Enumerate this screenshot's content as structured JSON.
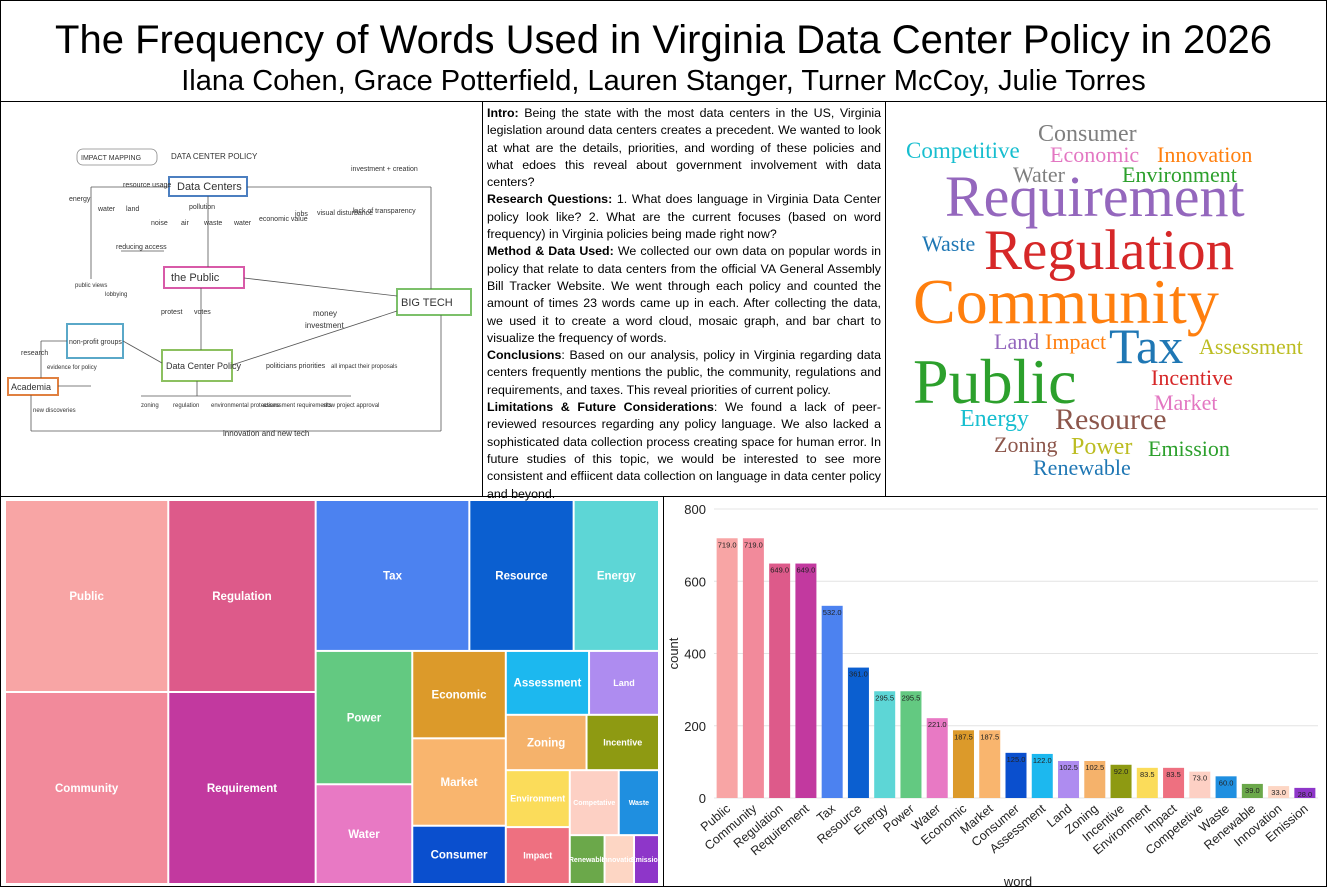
{
  "header": {
    "title": "The Frequency of Words Used in Virginia Data Center Policy in 2026",
    "authors": "Ilana Cohen, Grace Potterfield, Lauren Stanger, Turner McCoy, Julie Torres"
  },
  "diagram": {
    "labels": [
      "IMPACT MAPPING",
      "DATA CENTER POLICY",
      "Data Centers",
      "investment + creation",
      "resource usage",
      "energy",
      "water",
      "land",
      "pollution",
      "noise",
      "air",
      "waste",
      "water",
      "economic value",
      "jobs",
      "visual disturbance",
      "lack of transparency",
      "reducing access",
      "the Public",
      "BIG TECH",
      "money",
      "investment",
      "protest",
      "votes",
      "public views",
      "lobbying",
      "non-profit groups",
      "research",
      "evidence for policy",
      "Data Center Policy",
      "politicians priorities",
      "all impact their proposals",
      "Academia",
      "new discoveries",
      "zoning",
      "regulation",
      "environmental protections",
      "assessment requirements",
      "slow project approval",
      "innovation and new tech"
    ]
  },
  "text": {
    "sections": [
      {
        "label": "Intro:",
        "body": "Being the state with the most data centers in the US, Virginia legislation around data centers creates a precedent. We wanted to look at what are the details, priorities, and wording of these policies and what edoes this reveal about government involvement with data centers?"
      },
      {
        "label": "Research Questions:",
        "body": "1. What does language in Virginia Data Center policy look like? 2. What are the current focuses (based on word frequency) in Virginia policies being made right now?"
      },
      {
        "label": "Method & Data Used:",
        "body": "We collected our own data on popular words in policy that relate to data centers from the official VA General Assembly Bill Tracker Website. We went through each policy and counted the amount of times 23 words came up in each. After collecting the data, we used it to create a word cloud, mosaic graph, and bar chart to visualize the frequency of words."
      },
      {
        "label": "Conclusions",
        "body": ": Based on our analysis, policy in Virginia regarding data centers frequently mentions the public, the community, regulations and requirements, and taxes. This reveal priorities of current policy."
      },
      {
        "label": "Limitations & Future Considerations",
        "body": ": We found a lack of peer-reviewed resources regarding any policy language. We also lacked a sophisticated data collection process creating space for human error. In future studies of this topic, we would be interested to see more consistent and effiicent data collection on language in data center policy and beyond."
      }
    ]
  },
  "word_cloud": {
    "words": [
      {
        "text": "Consumer",
        "color": "#7f7f7f"
      },
      {
        "text": "Competitive",
        "color": "#17becf"
      },
      {
        "text": "Economic",
        "color": "#e377c2"
      },
      {
        "text": "Innovation",
        "color": "#ff7f0e"
      },
      {
        "text": "Water",
        "color": "#7f7f7f"
      },
      {
        "text": "Environment",
        "color": "#2ca02c"
      },
      {
        "text": "Requirement",
        "color": "#9467bd"
      },
      {
        "text": "Waste",
        "color": "#1f77b4"
      },
      {
        "text": "Regulation",
        "color": "#d62728"
      },
      {
        "text": "Community",
        "color": "#ff7f0e"
      },
      {
        "text": "Land",
        "color": "#9467bd"
      },
      {
        "text": "Impact",
        "color": "#ff7f0e"
      },
      {
        "text": "Tax",
        "color": "#1f77b4"
      },
      {
        "text": "Assessment",
        "color": "#bcbd22"
      },
      {
        "text": "Public",
        "color": "#2ca02c"
      },
      {
        "text": "Incentive",
        "color": "#d62728"
      },
      {
        "text": "Market",
        "color": "#e377c2"
      },
      {
        "text": "Energy",
        "color": "#17becf"
      },
      {
        "text": "Resource",
        "color": "#8c564b"
      },
      {
        "text": "Zoning",
        "color": "#8c564b"
      },
      {
        "text": "Power",
        "color": "#bcbd22"
      },
      {
        "text": "Emission",
        "color": "#2ca02c"
      },
      {
        "text": "Renewable",
        "color": "#1f77b4"
      }
    ]
  },
  "chart_data": [
    {
      "type": "treemap",
      "categories": [
        "Public",
        "Community",
        "Regulation",
        "Requirement",
        "Tax",
        "Resource",
        "Energy",
        "Power",
        "Water",
        "Economic",
        "Market",
        "Consumer",
        "Assessment",
        "Land",
        "Zoning",
        "Incentive",
        "Environment",
        "Impact",
        "Competative",
        "Waste",
        "Renewable",
        "Innovation",
        "Emission"
      ],
      "values": [
        719,
        719,
        649,
        649,
        532,
        361,
        295.5,
        295.5,
        221,
        187.5,
        187.5,
        125,
        122,
        102.5,
        102.5,
        92,
        83.5,
        83.5,
        73,
        60,
        39,
        33,
        28
      ],
      "colors": [
        "#f8a5a5",
        "#f28a9b",
        "#dd5a8a",
        "#c2399f",
        "#4c82f0",
        "#0b5fd0",
        "#5dd6d6",
        "#63c981",
        "#e879c4",
        "#dc9a2a",
        "#f9b56e",
        "#0a4fce",
        "#1cb8ef",
        "#ae8cf0",
        "#f5b26b",
        "#8e9a12",
        "#fbdc5a",
        "#ee7080",
        "#fdd0c4",
        "#1f8fe0",
        "#6ba84a",
        "#fdd6c4",
        "#8e36c9"
      ]
    },
    {
      "type": "bar",
      "xlabel": "word",
      "ylabel": "count",
      "categories": [
        "Public",
        "Community",
        "Regulation",
        "Requirement",
        "Tax",
        "Resource",
        "Energy",
        "Power",
        "Water",
        "Economic",
        "Market",
        "Consumer",
        "Assessment",
        "Land",
        "Zoning",
        "Incentive",
        "Environment",
        "Impact",
        "Competetive",
        "Waste",
        "Renewable",
        "Innovation",
        "Emission"
      ],
      "values": [
        719,
        719,
        649,
        649,
        532,
        361,
        295.5,
        295.5,
        221,
        187.5,
        187.5,
        125,
        122,
        102.5,
        102.5,
        92,
        83.5,
        83.5,
        73,
        60,
        39,
        33,
        28
      ],
      "value_labels": [
        "719.0",
        "719.0",
        "649.0",
        "649.0",
        "532.0",
        "361.0",
        "295.5",
        "295.5",
        "221.0",
        "187.5",
        "187.5",
        "125.0",
        "122.0",
        "102.5",
        "102.5",
        "92.0",
        "83.5",
        "83.5",
        "73.0",
        "60.0",
        "39.0",
        "33.0",
        "28.0"
      ],
      "colors": [
        "#f8a5a5",
        "#f28a9b",
        "#dd5a8a",
        "#c2399f",
        "#4c82f0",
        "#0b5fd0",
        "#5dd6d6",
        "#63c981",
        "#e879c4",
        "#dc9a2a",
        "#f9b56e",
        "#0a4fce",
        "#1cb8ef",
        "#ae8cf0",
        "#f5b26b",
        "#8e9a12",
        "#fbdc5a",
        "#ee7080",
        "#fdd0c4",
        "#1f8fe0",
        "#6ba84a",
        "#fdd6c4",
        "#8e36c9"
      ],
      "ylim": [
        0,
        800
      ],
      "yticks": [
        0,
        200,
        400,
        600,
        800
      ],
      "grid": true
    }
  ]
}
